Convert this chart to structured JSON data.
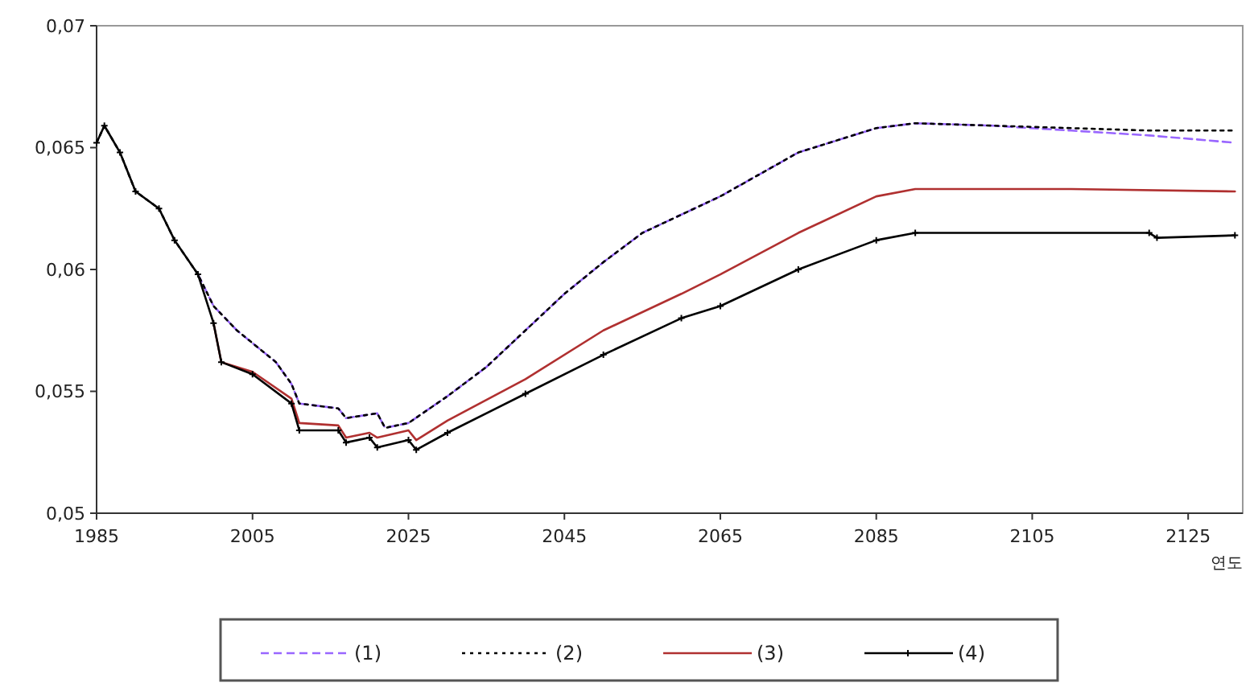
{
  "chart_data": {
    "type": "line",
    "xlabel": "연도",
    "xlim": [
      1985,
      2132
    ],
    "xticks": [
      1985,
      2005,
      2025,
      2045,
      2065,
      2085,
      2105,
      2125
    ],
    "ylim": [
      0.05,
      0.07
    ],
    "yticks": [
      {
        "value": 0.05,
        "label": "0,05"
      },
      {
        "value": 0.055,
        "label": "0,055"
      },
      {
        "value": 0.06,
        "label": "0,06"
      },
      {
        "value": 0.065,
        "label": "0,065"
      },
      {
        "value": 0.07,
        "label": "0,07"
      }
    ],
    "grid": false,
    "legend": "bottom",
    "series": [
      {
        "name": "(1)",
        "color": "#9966ff",
        "line_style": "dashed",
        "marker": "none",
        "x": [
          1998,
          2000,
          2003,
          2008,
          2010,
          2011,
          2016,
          2017,
          2021,
          2022,
          2025,
          2030,
          2035,
          2040,
          2045,
          2050,
          2055,
          2065,
          2075,
          2085,
          2090,
          2100,
          2110,
          2120,
          2131
        ],
        "values": [
          0.0598,
          0.0585,
          0.0575,
          0.0562,
          0.0553,
          0.0545,
          0.0543,
          0.0539,
          0.0541,
          0.0535,
          0.0537,
          0.0548,
          0.056,
          0.0575,
          0.059,
          0.0603,
          0.0615,
          0.063,
          0.0648,
          0.0658,
          0.066,
          0.0659,
          0.0657,
          0.0655,
          0.0652
        ]
      },
      {
        "name": "(2)",
        "color": "#000000",
        "line_style": "dotted",
        "marker": "none",
        "x": [
          1985,
          1986,
          1988,
          1990,
          1993,
          1995,
          1998,
          2000,
          2003,
          2008,
          2010,
          2011,
          2016,
          2017,
          2021,
          2022,
          2025,
          2030,
          2035,
          2040,
          2045,
          2050,
          2055,
          2065,
          2075,
          2085,
          2090,
          2100,
          2110,
          2120,
          2131
        ],
        "values": [
          0.0652,
          0.0659,
          0.0648,
          0.0632,
          0.0625,
          0.0612,
          0.0598,
          0.0585,
          0.0575,
          0.0562,
          0.0553,
          0.0545,
          0.0543,
          0.0539,
          0.0541,
          0.0535,
          0.0537,
          0.0548,
          0.056,
          0.0575,
          0.059,
          0.0603,
          0.0615,
          0.063,
          0.0648,
          0.0658,
          0.066,
          0.0659,
          0.0658,
          0.0657,
          0.0657
        ]
      },
      {
        "name": "(3)",
        "color": "#b03030",
        "line_style": "solid",
        "marker": "none",
        "x": [
          2000,
          2001,
          2005,
          2010,
          2011,
          2016,
          2017,
          2020,
          2021,
          2025,
          2026,
          2030,
          2040,
          2050,
          2060,
          2065,
          2075,
          2085,
          2090,
          2110,
          2131
        ],
        "values": [
          0.0578,
          0.0562,
          0.0558,
          0.0547,
          0.0537,
          0.0536,
          0.0531,
          0.0533,
          0.0531,
          0.0534,
          0.053,
          0.0538,
          0.0555,
          0.0575,
          0.059,
          0.0598,
          0.0615,
          0.063,
          0.0633,
          0.0633,
          0.0632
        ]
      },
      {
        "name": "(4)",
        "color": "#000000",
        "line_style": "solid",
        "marker": "cross",
        "x": [
          1985,
          1986,
          1988,
          1990,
          1993,
          1995,
          1998,
          2000,
          2001,
          2005,
          2010,
          2011,
          2016,
          2017,
          2020,
          2021,
          2025,
          2026,
          2030,
          2040,
          2050,
          2060,
          2065,
          2075,
          2085,
          2090,
          2120,
          2121,
          2131
        ],
        "values": [
          0.0652,
          0.0659,
          0.0648,
          0.0632,
          0.0625,
          0.0612,
          0.0598,
          0.0578,
          0.0562,
          0.0557,
          0.0545,
          0.0534,
          0.0534,
          0.0529,
          0.0531,
          0.0527,
          0.053,
          0.0526,
          0.0533,
          0.0549,
          0.0565,
          0.058,
          0.0585,
          0.06,
          0.0612,
          0.0615,
          0.0615,
          0.0613,
          0.0614
        ]
      }
    ]
  }
}
